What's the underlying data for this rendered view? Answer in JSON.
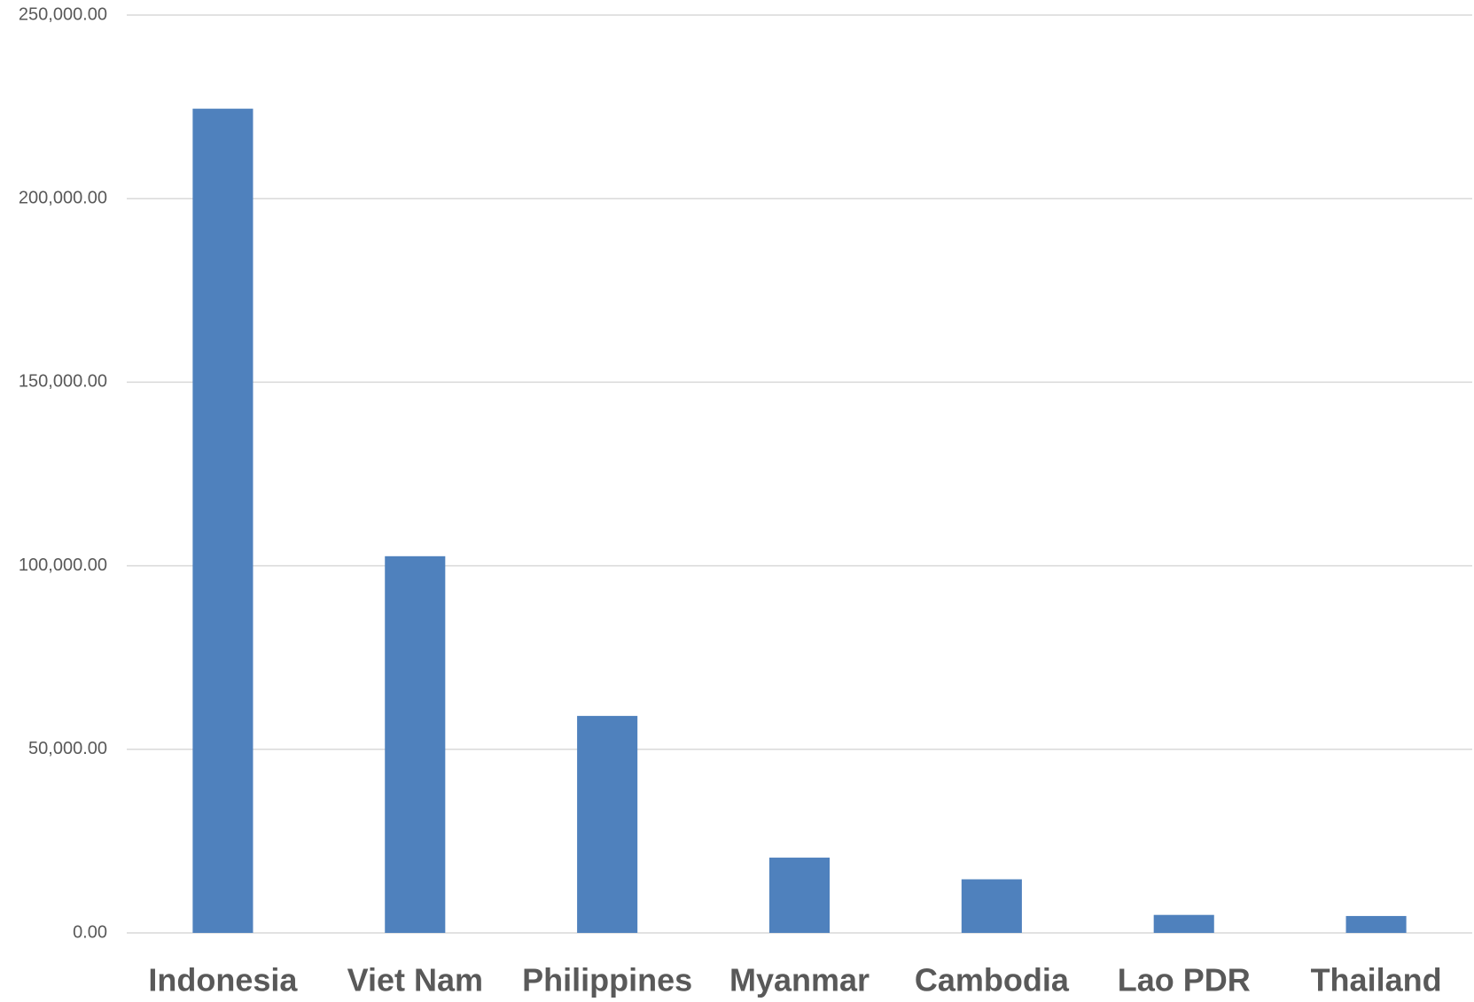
{
  "chart_data": {
    "type": "bar",
    "categories": [
      "Indonesia",
      "Viet Nam",
      "Philippines",
      "Myanmar",
      "Cambodia",
      "Lao PDR",
      "Thailand"
    ],
    "values": [
      224500,
      102600,
      59100,
      20500,
      14600,
      4900,
      4600
    ],
    "color": "#4f81bd",
    "ylim": [
      0,
      250000
    ],
    "yticks": [
      {
        "value": 0,
        "label": "0.00"
      },
      {
        "value": 50000,
        "label": "50,000.00"
      },
      {
        "value": 100000,
        "label": "100,000.00"
      },
      {
        "value": 150000,
        "label": "150,000.00"
      },
      {
        "value": 200000,
        "label": "200,000.00"
      },
      {
        "value": 250000,
        "label": "250,000.00"
      }
    ],
    "grid": true
  }
}
